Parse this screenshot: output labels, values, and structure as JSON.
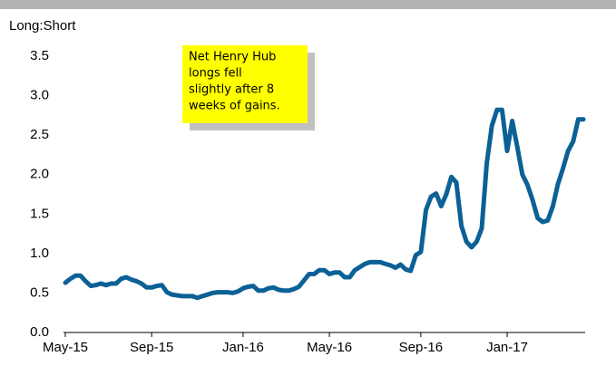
{
  "chart_data": {
    "type": "line",
    "y_axis_label": "Long:Short",
    "annotation": [
      "Net Henry Hub",
      "longs fell",
      "slightly after 8",
      "weeks of gains."
    ],
    "categories": [
      "May-15",
      null,
      null,
      null,
      null,
      null,
      null,
      null,
      null,
      null,
      null,
      null,
      null,
      null,
      null,
      null,
      null,
      "Sep-15",
      null,
      null,
      null,
      null,
      null,
      null,
      null,
      null,
      null,
      null,
      null,
      null,
      null,
      null,
      null,
      null,
      null,
      "Jan-16",
      null,
      null,
      null,
      null,
      null,
      null,
      null,
      null,
      null,
      null,
      null,
      null,
      null,
      null,
      null,
      null,
      "May-16",
      null,
      null,
      null,
      null,
      null,
      null,
      null,
      null,
      null,
      null,
      null,
      null,
      null,
      null,
      null,
      null,
      null,
      "Sep-16",
      null,
      null,
      null,
      null,
      null,
      null,
      null,
      null,
      null,
      null,
      null,
      null,
      null,
      null,
      null,
      null,
      "Jan-17",
      null,
      null,
      null,
      null,
      null,
      null,
      null,
      null,
      null,
      null,
      null,
      null,
      null,
      null,
      null
    ],
    "series": [
      {
        "name": "Net Henry Hub",
        "color": "#0b6196",
        "values": [
          0.63,
          0.68,
          0.72,
          0.72,
          0.65,
          0.59,
          0.6,
          0.62,
          0.6,
          0.62,
          0.62,
          0.68,
          0.7,
          0.67,
          0.65,
          0.62,
          0.57,
          0.57,
          0.59,
          0.6,
          0.51,
          0.48,
          0.47,
          0.46,
          0.46,
          0.46,
          0.44,
          0.46,
          0.48,
          0.5,
          0.51,
          0.51,
          0.51,
          0.5,
          0.52,
          0.56,
          0.58,
          0.59,
          0.53,
          0.53,
          0.56,
          0.57,
          0.54,
          0.53,
          0.53,
          0.55,
          0.58,
          0.66,
          0.74,
          0.74,
          0.79,
          0.79,
          0.74,
          0.76,
          0.76,
          0.7,
          0.7,
          0.79,
          0.83,
          0.87,
          0.89,
          0.89,
          0.89,
          0.87,
          0.85,
          0.82,
          0.86,
          0.8,
          0.78,
          0.98,
          1.02,
          1.55,
          1.72,
          1.76,
          1.6,
          1.75,
          1.97,
          1.9,
          1.35,
          1.15,
          1.08,
          1.15,
          1.32,
          2.15,
          2.62,
          2.82,
          2.82,
          2.3,
          2.68,
          2.35,
          2.0,
          1.87,
          1.68,
          1.45,
          1.4,
          1.42,
          1.6,
          1.88,
          2.08,
          2.3,
          2.42,
          2.7,
          2.7
        ]
      }
    ],
    "ylim": [
      0,
      3.5
    ],
    "yticks": [
      {
        "value": 0,
        "label": "0.0"
      },
      {
        "value": 0.5,
        "label": "0.5"
      },
      {
        "value": 1,
        "label": "1.0"
      },
      {
        "value": 1.5,
        "label": "1.5"
      },
      {
        "value": 2,
        "label": "2.0"
      },
      {
        "value": 2.5,
        "label": "2.5"
      },
      {
        "value": 3,
        "label": "3.0"
      },
      {
        "value": 3.5,
        "label": "3.5"
      }
    ],
    "grid": false
  }
}
